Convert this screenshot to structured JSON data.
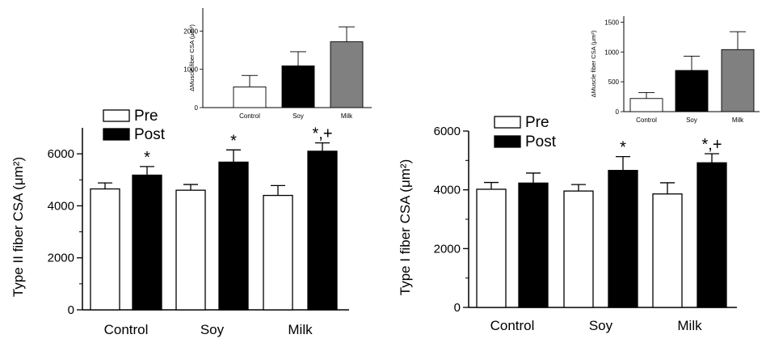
{
  "chart_data": [
    {
      "id": "type2",
      "type": "bar",
      "ylabel": "Type II fiber CSA (μm²)",
      "categories": [
        "Control",
        "Soy",
        "Milk"
      ],
      "ylim": [
        0,
        7000
      ],
      "yticks": [
        0,
        2000,
        4000,
        6000
      ],
      "legend": {
        "position": "top-left",
        "entries": [
          "Pre",
          "Post"
        ]
      },
      "series": [
        {
          "name": "Pre",
          "color": "#ffffff",
          "values": [
            4650,
            4600,
            4400
          ],
          "errors": [
            230,
            220,
            380
          ]
        },
        {
          "name": "Post",
          "color": "#000000",
          "values": [
            5180,
            5680,
            6100
          ],
          "errors": [
            330,
            470,
            320
          ]
        }
      ],
      "annotations": [
        "*",
        "*",
        "*,+"
      ],
      "inset": {
        "type": "bar",
        "ylabel": "ΔMuscle fiber CSA (μm²)",
        "categories": [
          "Control",
          "Soy",
          "Milk"
        ],
        "ylim": [
          0,
          2600
        ],
        "yticks": [
          0,
          1000,
          2000
        ],
        "values": [
          540,
          1090,
          1720
        ],
        "errors": [
          300,
          370,
          390
        ],
        "colors": [
          "#ffffff",
          "#000000",
          "#808080"
        ]
      }
    },
    {
      "id": "type1",
      "type": "bar",
      "ylabel": "Type I fiber CSA (μm²)",
      "categories": [
        "Control",
        "Soy",
        "Milk"
      ],
      "ylim": [
        0,
        6000
      ],
      "yticks": [
        0,
        2000,
        4000,
        6000
      ],
      "legend": {
        "position": "top-left",
        "entries": [
          "Pre",
          "Post"
        ]
      },
      "series": [
        {
          "name": "Pre",
          "color": "#ffffff",
          "values": [
            4020,
            3960,
            3860
          ],
          "errors": [
            230,
            220,
            380
          ]
        },
        {
          "name": "Post",
          "color": "#000000",
          "values": [
            4230,
            4660,
            4920
          ],
          "errors": [
            340,
            470,
            310
          ]
        }
      ],
      "annotations": [
        "",
        "*",
        "*,+"
      ],
      "inset": {
        "type": "bar",
        "ylabel": "ΔMuscle fiber CSA (μm²)",
        "categories": [
          "Control",
          "Soy",
          "Milk"
        ],
        "ylim": [
          0,
          1600
        ],
        "yticks": [
          0,
          500,
          1000,
          1500
        ],
        "values": [
          220,
          690,
          1040
        ],
        "errors": [
          100,
          240,
          300
        ],
        "colors": [
          "#ffffff",
          "#000000",
          "#808080"
        ]
      }
    }
  ]
}
